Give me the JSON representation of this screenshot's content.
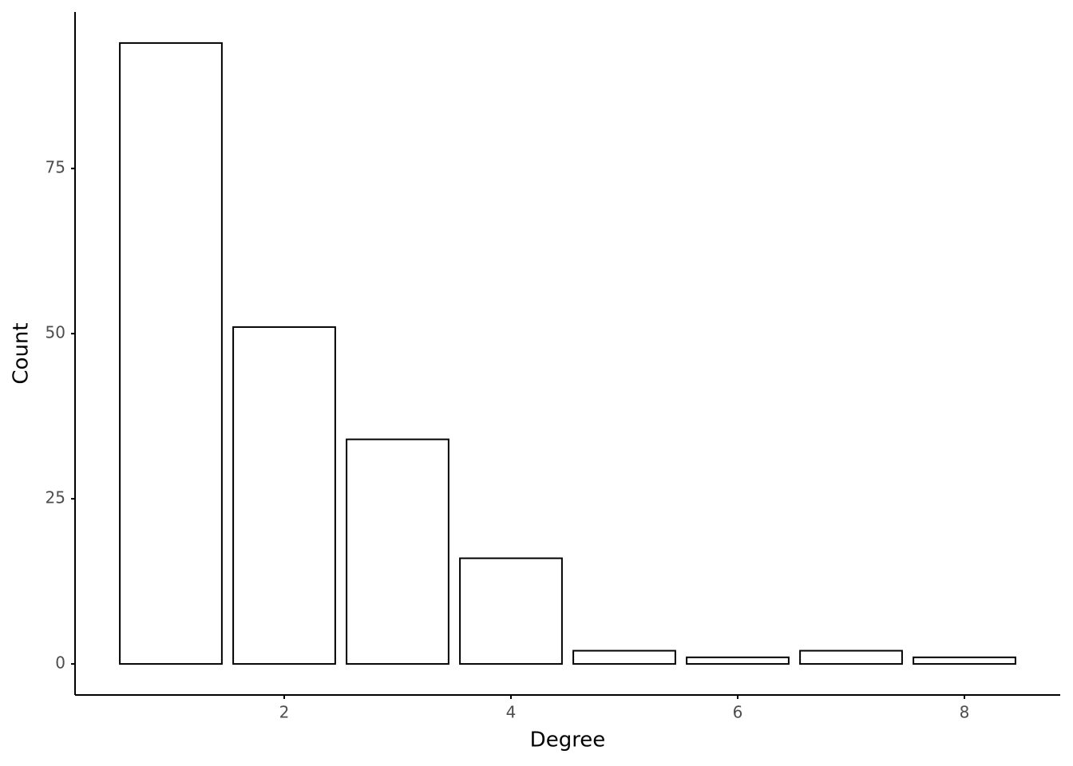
{
  "chart_data": {
    "type": "bar",
    "x_label": "Degree",
    "y_label": "Count",
    "x": [
      1,
      2,
      3,
      4,
      5,
      6,
      7,
      8
    ],
    "values": [
      94,
      51,
      34,
      16,
      2,
      1,
      2,
      1
    ],
    "color": "#ffffff",
    "xlim": [
      0.155,
      8.845
    ],
    "xticks": [
      2,
      4,
      6,
      8
    ],
    "ylim": [
      -4.7,
      98.7
    ],
    "yticks": [
      0,
      25,
      50,
      75
    ],
    "grid": false
  }
}
